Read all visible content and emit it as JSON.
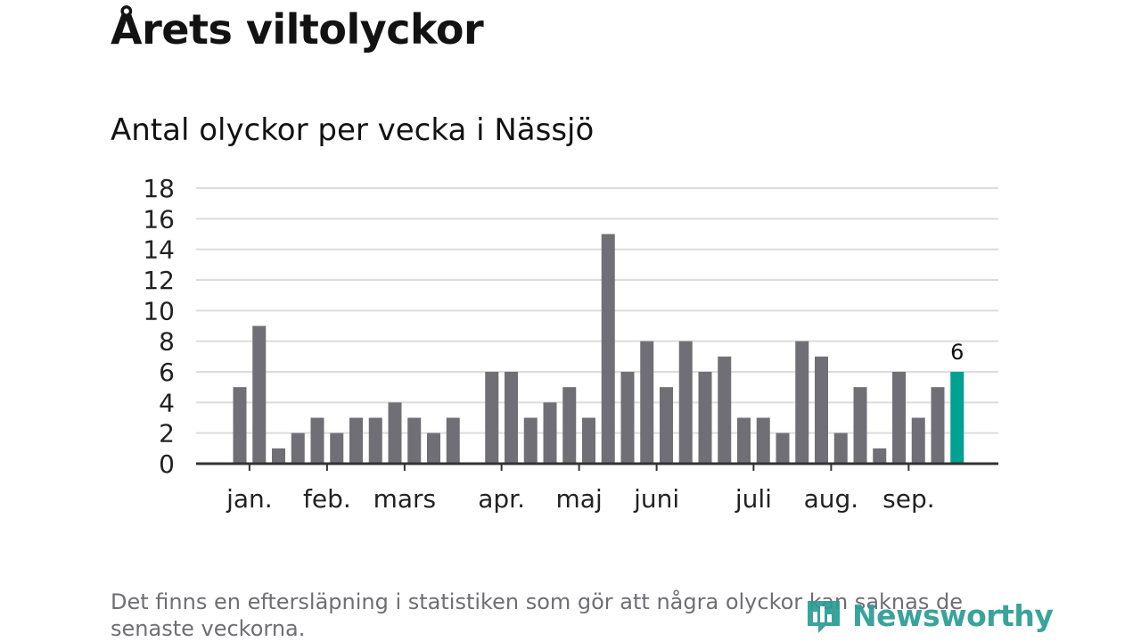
{
  "chart_data": {
    "type": "bar",
    "title": "Årets viltolyckor",
    "subtitle": "Antal olyckor per vecka i Nässjö",
    "ylim": [
      0,
      18
    ],
    "yticks": [
      0,
      2,
      4,
      6,
      8,
      10,
      12,
      14,
      16,
      18
    ],
    "grid": true,
    "values": [
      5,
      9,
      1,
      2,
      3,
      2,
      3,
      3,
      4,
      3,
      2,
      3,
      0,
      6,
      6,
      3,
      4,
      5,
      3,
      15,
      6,
      8,
      5,
      8,
      6,
      7,
      3,
      3,
      2,
      8,
      7,
      2,
      5,
      1,
      6,
      3,
      5,
      6
    ],
    "month_labels": [
      {
        "label": "jan.",
        "week": 0.5
      },
      {
        "label": "feb.",
        "week": 4.5
      },
      {
        "label": "mars",
        "week": 8.5
      },
      {
        "label": "apr.",
        "week": 13.5
      },
      {
        "label": "maj",
        "week": 17.5
      },
      {
        "label": "juni",
        "week": 21.5
      },
      {
        "label": "juli",
        "week": 26.5
      },
      {
        "label": "aug.",
        "week": 30.5
      },
      {
        "label": "sep.",
        "week": 34.5
      }
    ],
    "highlight_index": 37,
    "highlight_label": "6",
    "bar_color": "#706f75",
    "highlight_color": "#00a093",
    "grid_color": "#dcdcdc",
    "axis_color": "#333333"
  },
  "footnote": "Det finns en eftersläpning i statistiken som gör att några olyckor kan saknas de senaste veckorna.",
  "brand": {
    "name": "Newsworthy",
    "icon": "newsworthy-logo-icon",
    "color": "#2a9c93"
  }
}
